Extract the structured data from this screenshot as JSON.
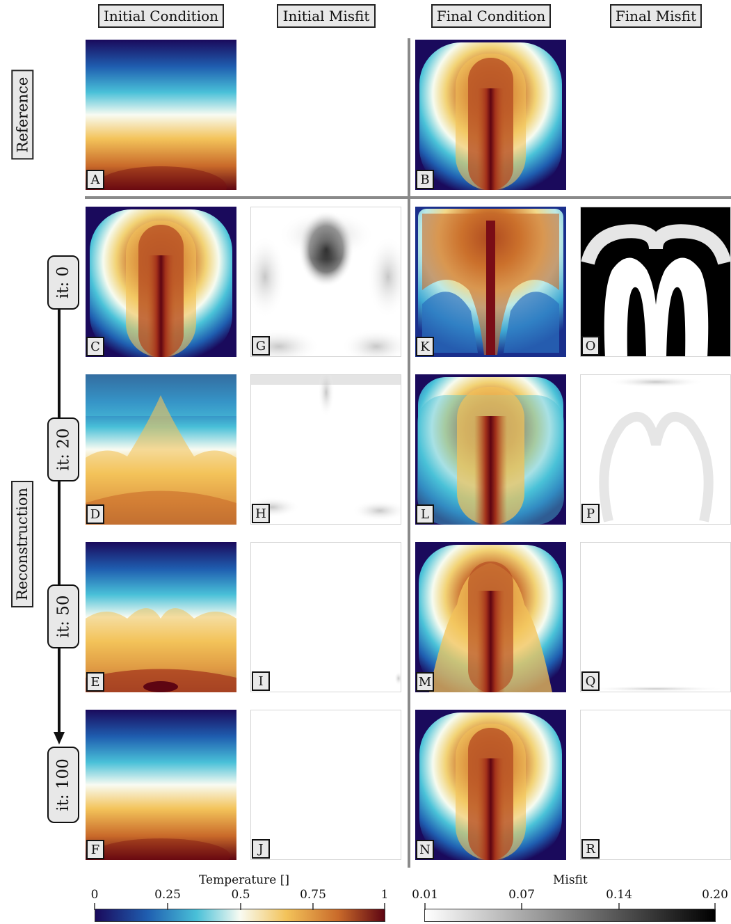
{
  "column_headers": [
    "Initial Condition",
    "Initial Misfit",
    "Final Condition",
    "Final Misfit"
  ],
  "row_headers": {
    "reference": "Reference",
    "reconstruction": "Reconstruction"
  },
  "iterations": [
    "it: 0",
    "it: 20",
    "it: 50",
    "it: 100"
  ],
  "panel_labels": {
    "A": "A",
    "B": "B",
    "C": "C",
    "D": "D",
    "E": "E",
    "F": "F",
    "G": "G",
    "H": "H",
    "I": "I",
    "J": "J",
    "K": "K",
    "L": "L",
    "M": "M",
    "N": "N",
    "O": "O",
    "P": "P",
    "Q": "Q",
    "R": "R"
  },
  "temperature_colorbar": {
    "title": "Temperature []",
    "ticks": [
      "0",
      "0.25",
      "0.5",
      "0.75",
      "1"
    ],
    "tick_values": [
      0,
      0.25,
      0.5,
      0.75,
      1
    ],
    "colors": [
      "#1a0a5c",
      "#1f5eb0",
      "#49c0d8",
      "#f8fbf2",
      "#f3c35a",
      "#c96a2a",
      "#5e0512"
    ]
  },
  "misfit_colorbar": {
    "title": "Misfit",
    "ticks": [
      "0.01",
      "0.07",
      "0.14",
      "0.20"
    ],
    "tick_values": [
      0.01,
      0.07,
      0.14,
      0.2
    ],
    "colors": [
      "#ffffff",
      "#000000"
    ]
  },
  "colors": {
    "divider": "#8a8a8a",
    "label_bg": "#e8e8e8",
    "border": "#111111"
  }
}
